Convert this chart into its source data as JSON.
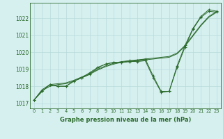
{
  "x": [
    0,
    1,
    2,
    3,
    4,
    5,
    6,
    7,
    8,
    9,
    10,
    11,
    12,
    13,
    14,
    15,
    16,
    17,
    18,
    19,
    20,
    21,
    22,
    23
  ],
  "y_main": [
    1017.2,
    1017.7,
    1018.1,
    1018.0,
    1018.0,
    1018.3,
    1018.5,
    1018.7,
    1019.1,
    1019.3,
    1019.4,
    1019.4,
    1019.5,
    1019.5,
    1019.6,
    1018.6,
    1017.7,
    1017.7,
    1019.2,
    1020.4,
    1021.4,
    1022.1,
    1022.5,
    1022.4
  ],
  "y_line2": [
    1017.2,
    1017.7,
    1018.1,
    1018.0,
    1018.0,
    1018.3,
    1018.5,
    1018.8,
    1019.1,
    1019.3,
    1019.4,
    1019.4,
    1019.45,
    1019.45,
    1019.5,
    1018.5,
    1017.65,
    1017.7,
    1019.1,
    1020.3,
    1021.35,
    1022.05,
    1022.4,
    1022.35
  ],
  "y_trend1": [
    1017.2,
    1017.8,
    1018.1,
    1018.15,
    1018.2,
    1018.35,
    1018.55,
    1018.75,
    1019.0,
    1019.2,
    1019.35,
    1019.45,
    1019.5,
    1019.55,
    1019.6,
    1019.65,
    1019.7,
    1019.75,
    1019.95,
    1020.4,
    1021.0,
    1021.6,
    1022.1,
    1022.4
  ],
  "y_trend2": [
    1017.2,
    1017.75,
    1018.0,
    1018.1,
    1018.15,
    1018.3,
    1018.5,
    1018.7,
    1018.95,
    1019.15,
    1019.3,
    1019.4,
    1019.45,
    1019.5,
    1019.55,
    1019.6,
    1019.65,
    1019.7,
    1019.9,
    1020.35,
    1020.95,
    1021.55,
    1022.05,
    1022.35
  ],
  "line_color": "#2d6b2d",
  "bg_color": "#d6f0f0",
  "grid_color": "#b8dada",
  "ylabel_ticks": [
    1017,
    1018,
    1019,
    1020,
    1021,
    1022
  ],
  "xlabel": "Graphe pression niveau de la mer (hPa)",
  "ylim": [
    1016.7,
    1022.9
  ],
  "xlim": [
    -0.5,
    23.5
  ],
  "marker": "+"
}
